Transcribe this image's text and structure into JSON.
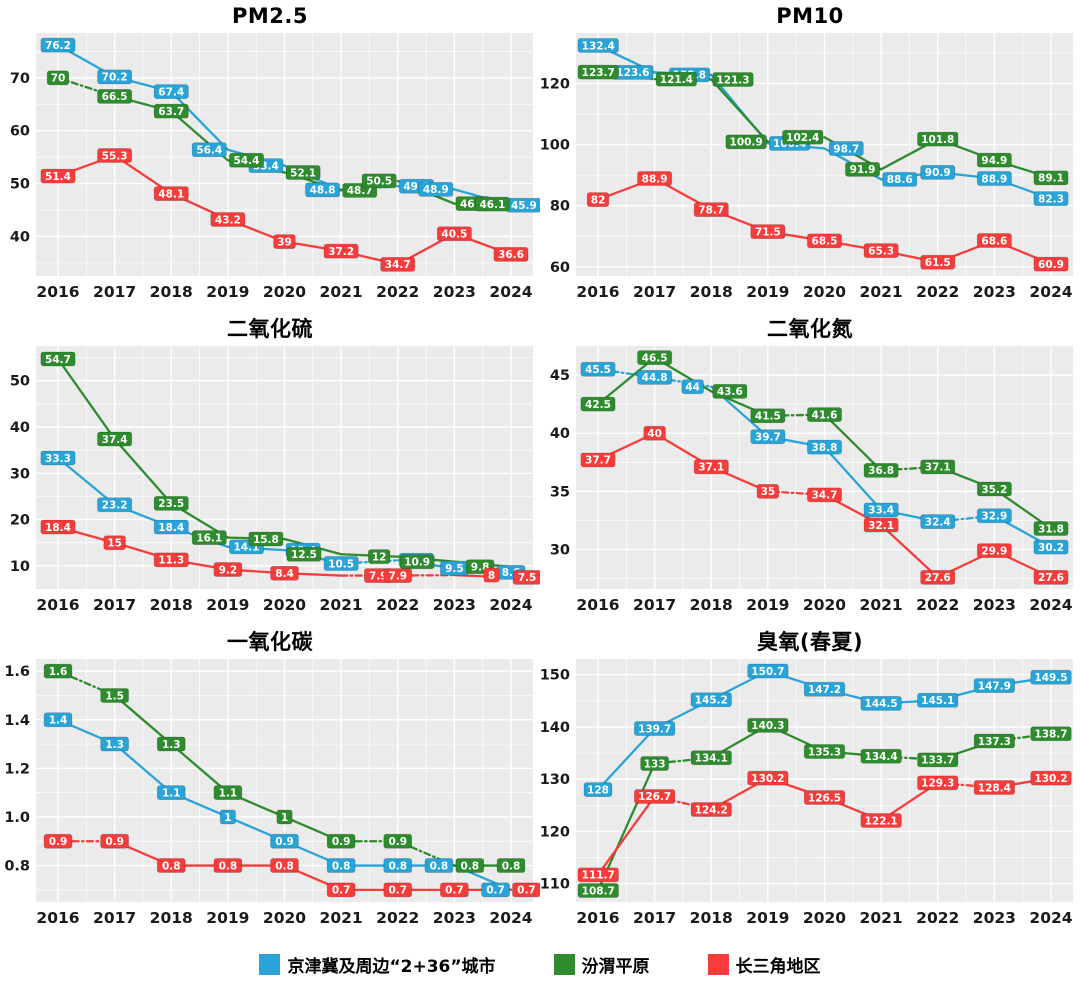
{
  "legend": {
    "items": [
      {
        "label": "京津冀及周边“2+36”城市",
        "color": "#29A4D9"
      },
      {
        "label": "汾渭平原",
        "color": "#2E8B2E"
      },
      {
        "label": "长三角地区",
        "color": "#F83C3C"
      }
    ]
  },
  "years": [
    "2016",
    "2017",
    "2018",
    "2019",
    "2020",
    "2021",
    "2022",
    "2023",
    "2024"
  ],
  "chart_data": [
    {
      "type": "line",
      "title": "PM2.5",
      "ytick_labels": [
        "40",
        "50",
        "60",
        "70"
      ],
      "ylim": [
        32.5,
        78.5
      ],
      "legend_position": "bottom-shared",
      "grid": true,
      "series": [
        {
          "name": "京津冀及周边“2+36”城市",
          "color": "#29A4D9",
          "values": [
            76.2,
            70.2,
            67.4,
            56.4,
            53.4,
            48.8,
            49.5,
            48.9,
            45.9
          ],
          "dashed_segments": [
            5
          ]
        },
        {
          "name": "汾渭平原",
          "color": "#2E8B2E",
          "values": [
            70,
            66.5,
            63.7,
            54.4,
            52.1,
            48.7,
            50.5,
            46.2,
            46.1
          ],
          "dashed_segments": [
            0,
            5
          ]
        },
        {
          "name": "长三角地区",
          "color": "#F83C3C",
          "values": [
            51.4,
            55.3,
            48.1,
            43.2,
            39,
            37.2,
            34.7,
            40.5,
            36.6
          ],
          "dashed_segments": []
        }
      ]
    },
    {
      "type": "line",
      "title": "PM10",
      "ytick_labels": [
        "60",
        "80",
        "100",
        "120"
      ],
      "ylim": [
        57,
        136.5
      ],
      "legend_position": "bottom-shared",
      "grid": true,
      "series": [
        {
          "name": "京津冀及周边“2+36”城市",
          "color": "#29A4D9",
          "values": [
            132.4,
            123.6,
            122.8,
            100.4,
            98.7,
            88.6,
            90.9,
            88.9,
            82.3
          ],
          "dashed_segments": []
        },
        {
          "name": "汾渭平原",
          "color": "#2E8B2E",
          "values": [
            123.7,
            121.4,
            121.3,
            100.9,
            102.4,
            91.9,
            101.8,
            94.9,
            89.1
          ],
          "dashed_segments": [
            0,
            3
          ]
        },
        {
          "name": "长三角地区",
          "color": "#F83C3C",
          "values": [
            82,
            88.9,
            78.7,
            71.5,
            68.5,
            65.3,
            61.5,
            68.6,
            60.9
          ],
          "dashed_segments": []
        }
      ]
    },
    {
      "type": "line",
      "title": "二氧化硫",
      "ytick_labels": [
        "10",
        "20",
        "30",
        "40",
        "50"
      ],
      "ylim": [
        5,
        57.5
      ],
      "legend_position": "bottom-shared",
      "grid": true,
      "series": [
        {
          "name": "京津冀及周边“2+36”城市",
          "color": "#29A4D9",
          "values": [
            33.3,
            23.2,
            18.4,
            14.1,
            13.4,
            10.5,
            11.2,
            9.5,
            8.6
          ],
          "dashed_segments": [
            5
          ]
        },
        {
          "name": "汾渭平原",
          "color": "#2E8B2E",
          "values": [
            54.7,
            37.4,
            23.5,
            16.1,
            15.8,
            12.5,
            12,
            10.9,
            9.8
          ],
          "dashed_segments": []
        },
        {
          "name": "长三角地区",
          "color": "#F83C3C",
          "values": [
            18.4,
            15,
            11.3,
            9.2,
            8.4,
            7.9,
            7.9,
            8,
            7.5
          ],
          "dashed_segments": [
            5,
            6
          ]
        }
      ]
    },
    {
      "type": "line",
      "title": "二氧化氮",
      "ytick_labels": [
        "30",
        "35",
        "40",
        "45"
      ],
      "ylim": [
        26.6,
        47.5
      ],
      "legend_position": "bottom-shared",
      "grid": true,
      "series": [
        {
          "name": "京津冀及周边“2+36”城市",
          "color": "#29A4D9",
          "values": [
            45.5,
            44.8,
            44,
            39.7,
            38.8,
            33.4,
            32.4,
            32.9,
            30.2
          ],
          "dashed_segments": [
            0,
            1,
            6
          ]
        },
        {
          "name": "汾渭平原",
          "color": "#2E8B2E",
          "values": [
            42.5,
            46.5,
            43.6,
            41.5,
            41.6,
            36.8,
            37.1,
            35.2,
            31.8
          ],
          "dashed_segments": [
            3,
            5
          ]
        },
        {
          "name": "长三角地区",
          "color": "#F83C3C",
          "values": [
            37.7,
            40,
            37.1,
            35,
            34.7,
            32.1,
            27.6,
            29.9,
            27.6
          ],
          "dashed_segments": [
            3
          ]
        }
      ]
    },
    {
      "type": "line",
      "title": "一氧化碳",
      "ytick_labels": [
        "0.8",
        "1.0",
        "1.2",
        "1.4",
        "1.6"
      ],
      "ylim": [
        0.65,
        1.65
      ],
      "legend_position": "bottom-shared",
      "grid": true,
      "series": [
        {
          "name": "京津冀及周边“2+36”城市",
          "color": "#29A4D9",
          "values": [
            1.4,
            1.3,
            1.1,
            1,
            0.9,
            0.8,
            0.8,
            0.8,
            0.7
          ],
          "dashed_segments": []
        },
        {
          "name": "汾渭平原",
          "color": "#2E8B2E",
          "values": [
            1.6,
            1.5,
            1.3,
            1.1,
            1,
            0.9,
            0.9,
            0.8,
            0.8
          ],
          "dashed_segments": [
            0,
            5,
            6
          ]
        },
        {
          "name": "长三角地区",
          "color": "#F83C3C",
          "values": [
            0.9,
            0.9,
            0.8,
            0.8,
            0.8,
            0.7,
            0.7,
            0.7,
            0.7
          ],
          "dashed_segments": [
            0
          ]
        }
      ]
    },
    {
      "type": "line",
      "title": "臭氧(春夏)",
      "ytick_labels": [
        "110",
        "120",
        "130",
        "140",
        "150"
      ],
      "ylim": [
        106.5,
        153
      ],
      "legend_position": "bottom-shared",
      "grid": true,
      "series": [
        {
          "name": "京津冀及周边“2+36”城市",
          "color": "#29A4D9",
          "values": [
            128,
            139.7,
            145.2,
            150.7,
            147.2,
            144.5,
            145.1,
            147.9,
            149.5
          ],
          "dashed_segments": []
        },
        {
          "name": "汾渭平原",
          "color": "#2E8B2E",
          "values": [
            108.7,
            133,
            134.1,
            140.3,
            135.3,
            134.4,
            133.7,
            137.3,
            138.7
          ],
          "dashed_segments": [
            1,
            5,
            7
          ]
        },
        {
          "name": "长三角地区",
          "color": "#F83C3C",
          "values": [
            111.7,
            126.7,
            124.2,
            130.2,
            126.5,
            122.1,
            129.3,
            128.4,
            130.2
          ],
          "dashed_segments": [
            1,
            6
          ]
        }
      ]
    }
  ]
}
